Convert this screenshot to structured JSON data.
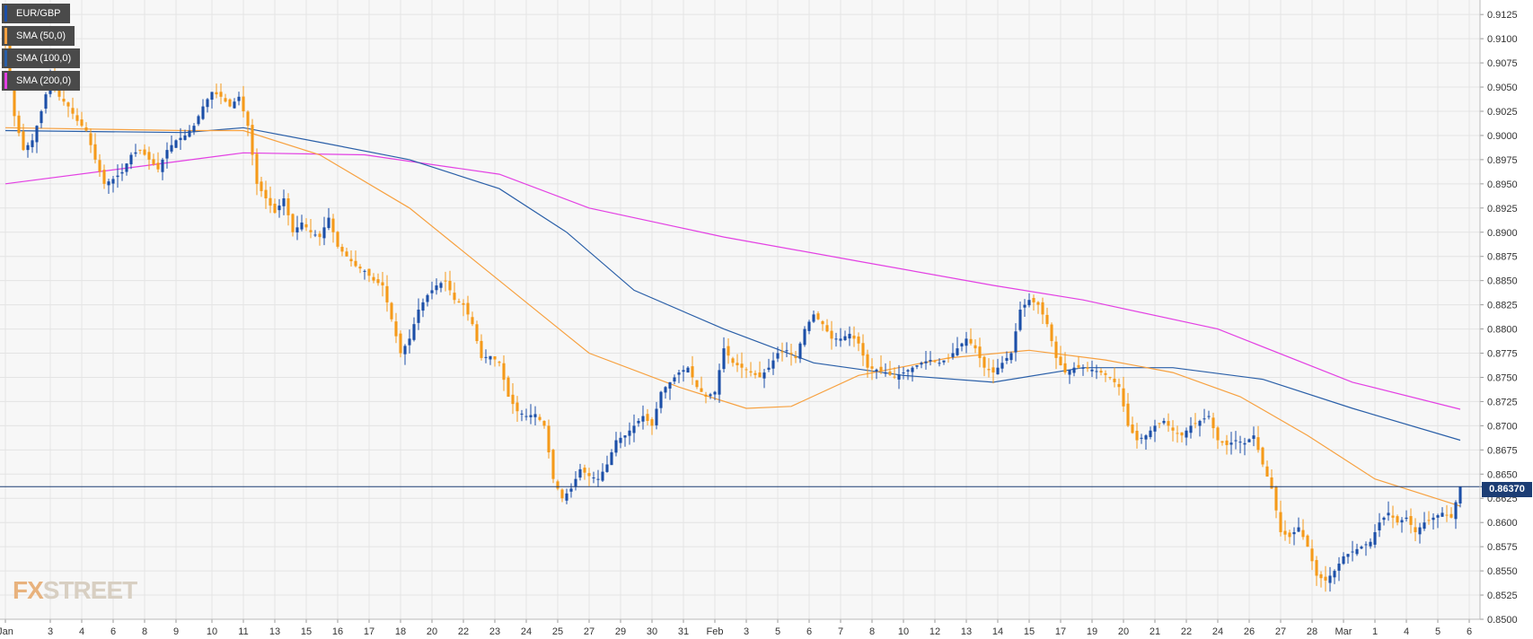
{
  "chart_data": {
    "type": "candlestick",
    "symbol": "EUR/GBP",
    "ylim": [
      0.85,
      0.914
    ],
    "y_ticks": [
      "0.9125",
      "0.9100",
      "0.9075",
      "0.9050",
      "0.9025",
      "0.9000",
      "0.8975",
      "0.8950",
      "0.8925",
      "0.8900",
      "0.8875",
      "0.8850",
      "0.8825",
      "0.8800",
      "0.8775",
      "0.8750",
      "0.8725",
      "0.8700",
      "0.8675",
      "0.8650",
      "0.8625",
      "0.8600",
      "0.8575",
      "0.8550",
      "0.8525",
      "0.8500"
    ],
    "x_ticks": [
      {
        "label": "Jan",
        "i": 0
      },
      {
        "label": "3",
        "i": 10
      },
      {
        "label": "4",
        "i": 17
      },
      {
        "label": "6",
        "i": 24
      },
      {
        "label": "8",
        "i": 31
      },
      {
        "label": "9",
        "i": 38
      },
      {
        "label": "10",
        "i": 46
      },
      {
        "label": "11",
        "i": 53
      },
      {
        "label": "13",
        "i": 60
      },
      {
        "label": "15",
        "i": 67
      },
      {
        "label": "16",
        "i": 74
      },
      {
        "label": "17",
        "i": 81
      },
      {
        "label": "18",
        "i": 88
      },
      {
        "label": "20",
        "i": 95
      },
      {
        "label": "22",
        "i": 102
      },
      {
        "label": "23",
        "i": 109
      },
      {
        "label": "24",
        "i": 116
      },
      {
        "label": "25",
        "i": 123
      },
      {
        "label": "27",
        "i": 130
      },
      {
        "label": "29",
        "i": 137
      },
      {
        "label": "30",
        "i": 144
      },
      {
        "label": "31",
        "i": 151
      },
      {
        "label": "Feb",
        "i": 158
      },
      {
        "label": "3",
        "i": 165
      },
      {
        "label": "5",
        "i": 172
      },
      {
        "label": "6",
        "i": 179
      },
      {
        "label": "7",
        "i": 186
      },
      {
        "label": "8",
        "i": 193
      },
      {
        "label": "10",
        "i": 200
      },
      {
        "label": "12",
        "i": 207
      },
      {
        "label": "13",
        "i": 214
      },
      {
        "label": "14",
        "i": 221
      },
      {
        "label": "15",
        "i": 228
      },
      {
        "label": "17",
        "i": 235
      },
      {
        "label": "19",
        "i": 242
      },
      {
        "label": "20",
        "i": 249
      },
      {
        "label": "21",
        "i": 256
      },
      {
        "label": "22",
        "i": 263
      },
      {
        "label": "24",
        "i": 270
      },
      {
        "label": "26",
        "i": 277
      },
      {
        "label": "27",
        "i": 284
      },
      {
        "label": "28",
        "i": 291
      },
      {
        "label": "Mar",
        "i": 298
      },
      {
        "label": "1",
        "i": 305
      },
      {
        "label": "4",
        "i": 312
      },
      {
        "label": "5",
        "i": 319
      },
      {
        "label": "6",
        "i": 326
      }
    ],
    "close_keypoints": [
      [
        0,
        0.9095
      ],
      [
        2,
        0.902
      ],
      [
        4,
        0.8985
      ],
      [
        6,
        0.8995
      ],
      [
        8,
        0.9025
      ],
      [
        10,
        0.906
      ],
      [
        12,
        0.904
      ],
      [
        14,
        0.903
      ],
      [
        16,
        0.9015
      ],
      [
        18,
        0.9005
      ],
      [
        20,
        0.8975
      ],
      [
        22,
        0.895
      ],
      [
        24,
        0.8955
      ],
      [
        26,
        0.8962
      ],
      [
        28,
        0.898
      ],
      [
        30,
        0.8985
      ],
      [
        32,
        0.8975
      ],
      [
        34,
        0.8965
      ],
      [
        36,
        0.8985
      ],
      [
        38,
        0.8995
      ],
      [
        40,
        0.9
      ],
      [
        42,
        0.901
      ],
      [
        44,
        0.903
      ],
      [
        46,
        0.9045
      ],
      [
        48,
        0.904
      ],
      [
        50,
        0.903
      ],
      [
        52,
        0.904
      ],
      [
        54,
        0.901
      ],
      [
        56,
        0.895
      ],
      [
        58,
        0.8935
      ],
      [
        60,
        0.892
      ],
      [
        62,
        0.8935
      ],
      [
        64,
        0.89
      ],
      [
        66,
        0.891
      ],
      [
        68,
        0.89
      ],
      [
        70,
        0.8895
      ],
      [
        72,
        0.8915
      ],
      [
        74,
        0.8885
      ],
      [
        76,
        0.8875
      ],
      [
        78,
        0.8865
      ],
      [
        80,
        0.886
      ],
      [
        82,
        0.885
      ],
      [
        84,
        0.8845
      ],
      [
        86,
        0.881
      ],
      [
        88,
        0.8775
      ],
      [
        90,
        0.879
      ],
      [
        92,
        0.882
      ],
      [
        94,
        0.8835
      ],
      [
        96,
        0.8845
      ],
      [
        98,
        0.885
      ],
      [
        100,
        0.883
      ],
      [
        102,
        0.8825
      ],
      [
        104,
        0.8805
      ],
      [
        106,
        0.877
      ],
      [
        108,
        0.8772
      ],
      [
        110,
        0.8765
      ],
      [
        112,
        0.873
      ],
      [
        114,
        0.8715
      ],
      [
        116,
        0.871
      ],
      [
        118,
        0.8712
      ],
      [
        120,
        0.87
      ],
      [
        122,
        0.8645
      ],
      [
        124,
        0.8625
      ],
      [
        126,
        0.8635
      ],
      [
        128,
        0.8655
      ],
      [
        130,
        0.8648
      ],
      [
        132,
        0.8645
      ],
      [
        134,
        0.866
      ],
      [
        136,
        0.8685
      ],
      [
        138,
        0.869
      ],
      [
        140,
        0.87
      ],
      [
        142,
        0.871
      ],
      [
        144,
        0.87
      ],
      [
        146,
        0.8735
      ],
      [
        148,
        0.8745
      ],
      [
        150,
        0.8755
      ],
      [
        152,
        0.876
      ],
      [
        154,
        0.874
      ],
      [
        156,
        0.873
      ],
      [
        158,
        0.8735
      ],
      [
        160,
        0.878
      ],
      [
        162,
        0.8765
      ],
      [
        164,
        0.876
      ],
      [
        166,
        0.8755
      ],
      [
        168,
        0.875
      ],
      [
        170,
        0.876
      ],
      [
        172,
        0.8775
      ],
      [
        174,
        0.8778
      ],
      [
        176,
        0.877
      ],
      [
        178,
        0.88
      ],
      [
        180,
        0.8815
      ],
      [
        182,
        0.8805
      ],
      [
        184,
        0.879
      ],
      [
        186,
        0.879
      ],
      [
        188,
        0.8795
      ],
      [
        190,
        0.8785
      ],
      [
        192,
        0.876
      ],
      [
        194,
        0.8758
      ],
      [
        196,
        0.8755
      ],
      [
        198,
        0.875
      ],
      [
        200,
        0.8755
      ],
      [
        202,
        0.876
      ],
      [
        204,
        0.8765
      ],
      [
        206,
        0.8768
      ],
      [
        208,
        0.8765
      ],
      [
        210,
        0.877
      ],
      [
        212,
        0.878
      ],
      [
        214,
        0.879
      ],
      [
        216,
        0.878
      ],
      [
        218,
        0.876
      ],
      [
        220,
        0.8755
      ],
      [
        222,
        0.8765
      ],
      [
        224,
        0.8775
      ],
      [
        226,
        0.882
      ],
      [
        228,
        0.883
      ],
      [
        230,
        0.8825
      ],
      [
        232,
        0.8805
      ],
      [
        234,
        0.877
      ],
      [
        236,
        0.8755
      ],
      [
        238,
        0.876
      ],
      [
        240,
        0.876
      ],
      [
        242,
        0.8758
      ],
      [
        244,
        0.8755
      ],
      [
        246,
        0.875
      ],
      [
        248,
        0.874
      ],
      [
        250,
        0.87
      ],
      [
        252,
        0.8685
      ],
      [
        254,
        0.869
      ],
      [
        256,
        0.87
      ],
      [
        258,
        0.8705
      ],
      [
        260,
        0.8695
      ],
      [
        262,
        0.869
      ],
      [
        264,
        0.87
      ],
      [
        266,
        0.8705
      ],
      [
        268,
        0.871
      ],
      [
        270,
        0.8685
      ],
      [
        272,
        0.868
      ],
      [
        274,
        0.8685
      ],
      [
        276,
        0.8682
      ],
      [
        278,
        0.869
      ],
      [
        280,
        0.866
      ],
      [
        282,
        0.8635
      ],
      [
        284,
        0.859
      ],
      [
        286,
        0.8585
      ],
      [
        288,
        0.8595
      ],
      [
        290,
        0.8575
      ],
      [
        292,
        0.8545
      ],
      [
        294,
        0.854
      ],
      [
        296,
        0.855
      ],
      [
        298,
        0.8565
      ],
      [
        300,
        0.857
      ],
      [
        302,
        0.8575
      ],
      [
        304,
        0.858
      ],
      [
        306,
        0.86
      ],
      [
        308,
        0.861
      ],
      [
        310,
        0.86
      ],
      [
        312,
        0.8605
      ],
      [
        314,
        0.859
      ],
      [
        316,
        0.86
      ],
      [
        318,
        0.8605
      ],
      [
        320,
        0.861
      ],
      [
        322,
        0.8605
      ],
      [
        324,
        0.8637
      ]
    ],
    "n_bars": 325,
    "sma_50_keypoints": [
      [
        0,
        0.9008
      ],
      [
        40,
        0.9005
      ],
      [
        53,
        0.9005
      ],
      [
        70,
        0.898
      ],
      [
        90,
        0.8925
      ],
      [
        110,
        0.885
      ],
      [
        130,
        0.8775
      ],
      [
        150,
        0.874
      ],
      [
        165,
        0.8718
      ],
      [
        175,
        0.872
      ],
      [
        190,
        0.8752
      ],
      [
        210,
        0.877
      ],
      [
        228,
        0.8778
      ],
      [
        245,
        0.8768
      ],
      [
        260,
        0.8755
      ],
      [
        275,
        0.873
      ],
      [
        290,
        0.869
      ],
      [
        305,
        0.8645
      ],
      [
        324,
        0.8617
      ]
    ],
    "sma_100_keypoints": [
      [
        0,
        0.9005
      ],
      [
        40,
        0.9003
      ],
      [
        53,
        0.9008
      ],
      [
        70,
        0.8993
      ],
      [
        90,
        0.8975
      ],
      [
        110,
        0.8945
      ],
      [
        125,
        0.89
      ],
      [
        140,
        0.884
      ],
      [
        160,
        0.88
      ],
      [
        180,
        0.8765
      ],
      [
        200,
        0.8752
      ],
      [
        220,
        0.8745
      ],
      [
        240,
        0.876
      ],
      [
        260,
        0.876
      ],
      [
        280,
        0.8748
      ],
      [
        300,
        0.8718
      ],
      [
        324,
        0.8685
      ]
    ],
    "sma_200_keypoints": [
      [
        0,
        0.895
      ],
      [
        30,
        0.8968
      ],
      [
        53,
        0.8982
      ],
      [
        80,
        0.898
      ],
      [
        110,
        0.896
      ],
      [
        130,
        0.8925
      ],
      [
        160,
        0.8895
      ],
      [
        190,
        0.887
      ],
      [
        220,
        0.8845
      ],
      [
        240,
        0.883
      ],
      [
        270,
        0.88
      ],
      [
        300,
        0.8745
      ],
      [
        324,
        0.8717
      ]
    ],
    "current_price": 0.8637,
    "current_price_label": "0.86370",
    "legend": [
      "EUR/GBP",
      "SMA (50,0)",
      "SMA (100,0)",
      "SMA (200,0)"
    ]
  },
  "colors": {
    "bull": "#1c4fa8",
    "bear": "#f59a1a",
    "sma50": "#f7a140",
    "sma100": "#2a5fa8",
    "sma200": "#e340e3",
    "grid": "#e4e4e4",
    "background": "#f7f7f7",
    "price_line": "#1c3d74"
  },
  "logo": {
    "prefix": "FX",
    "suffix": "STREET"
  }
}
